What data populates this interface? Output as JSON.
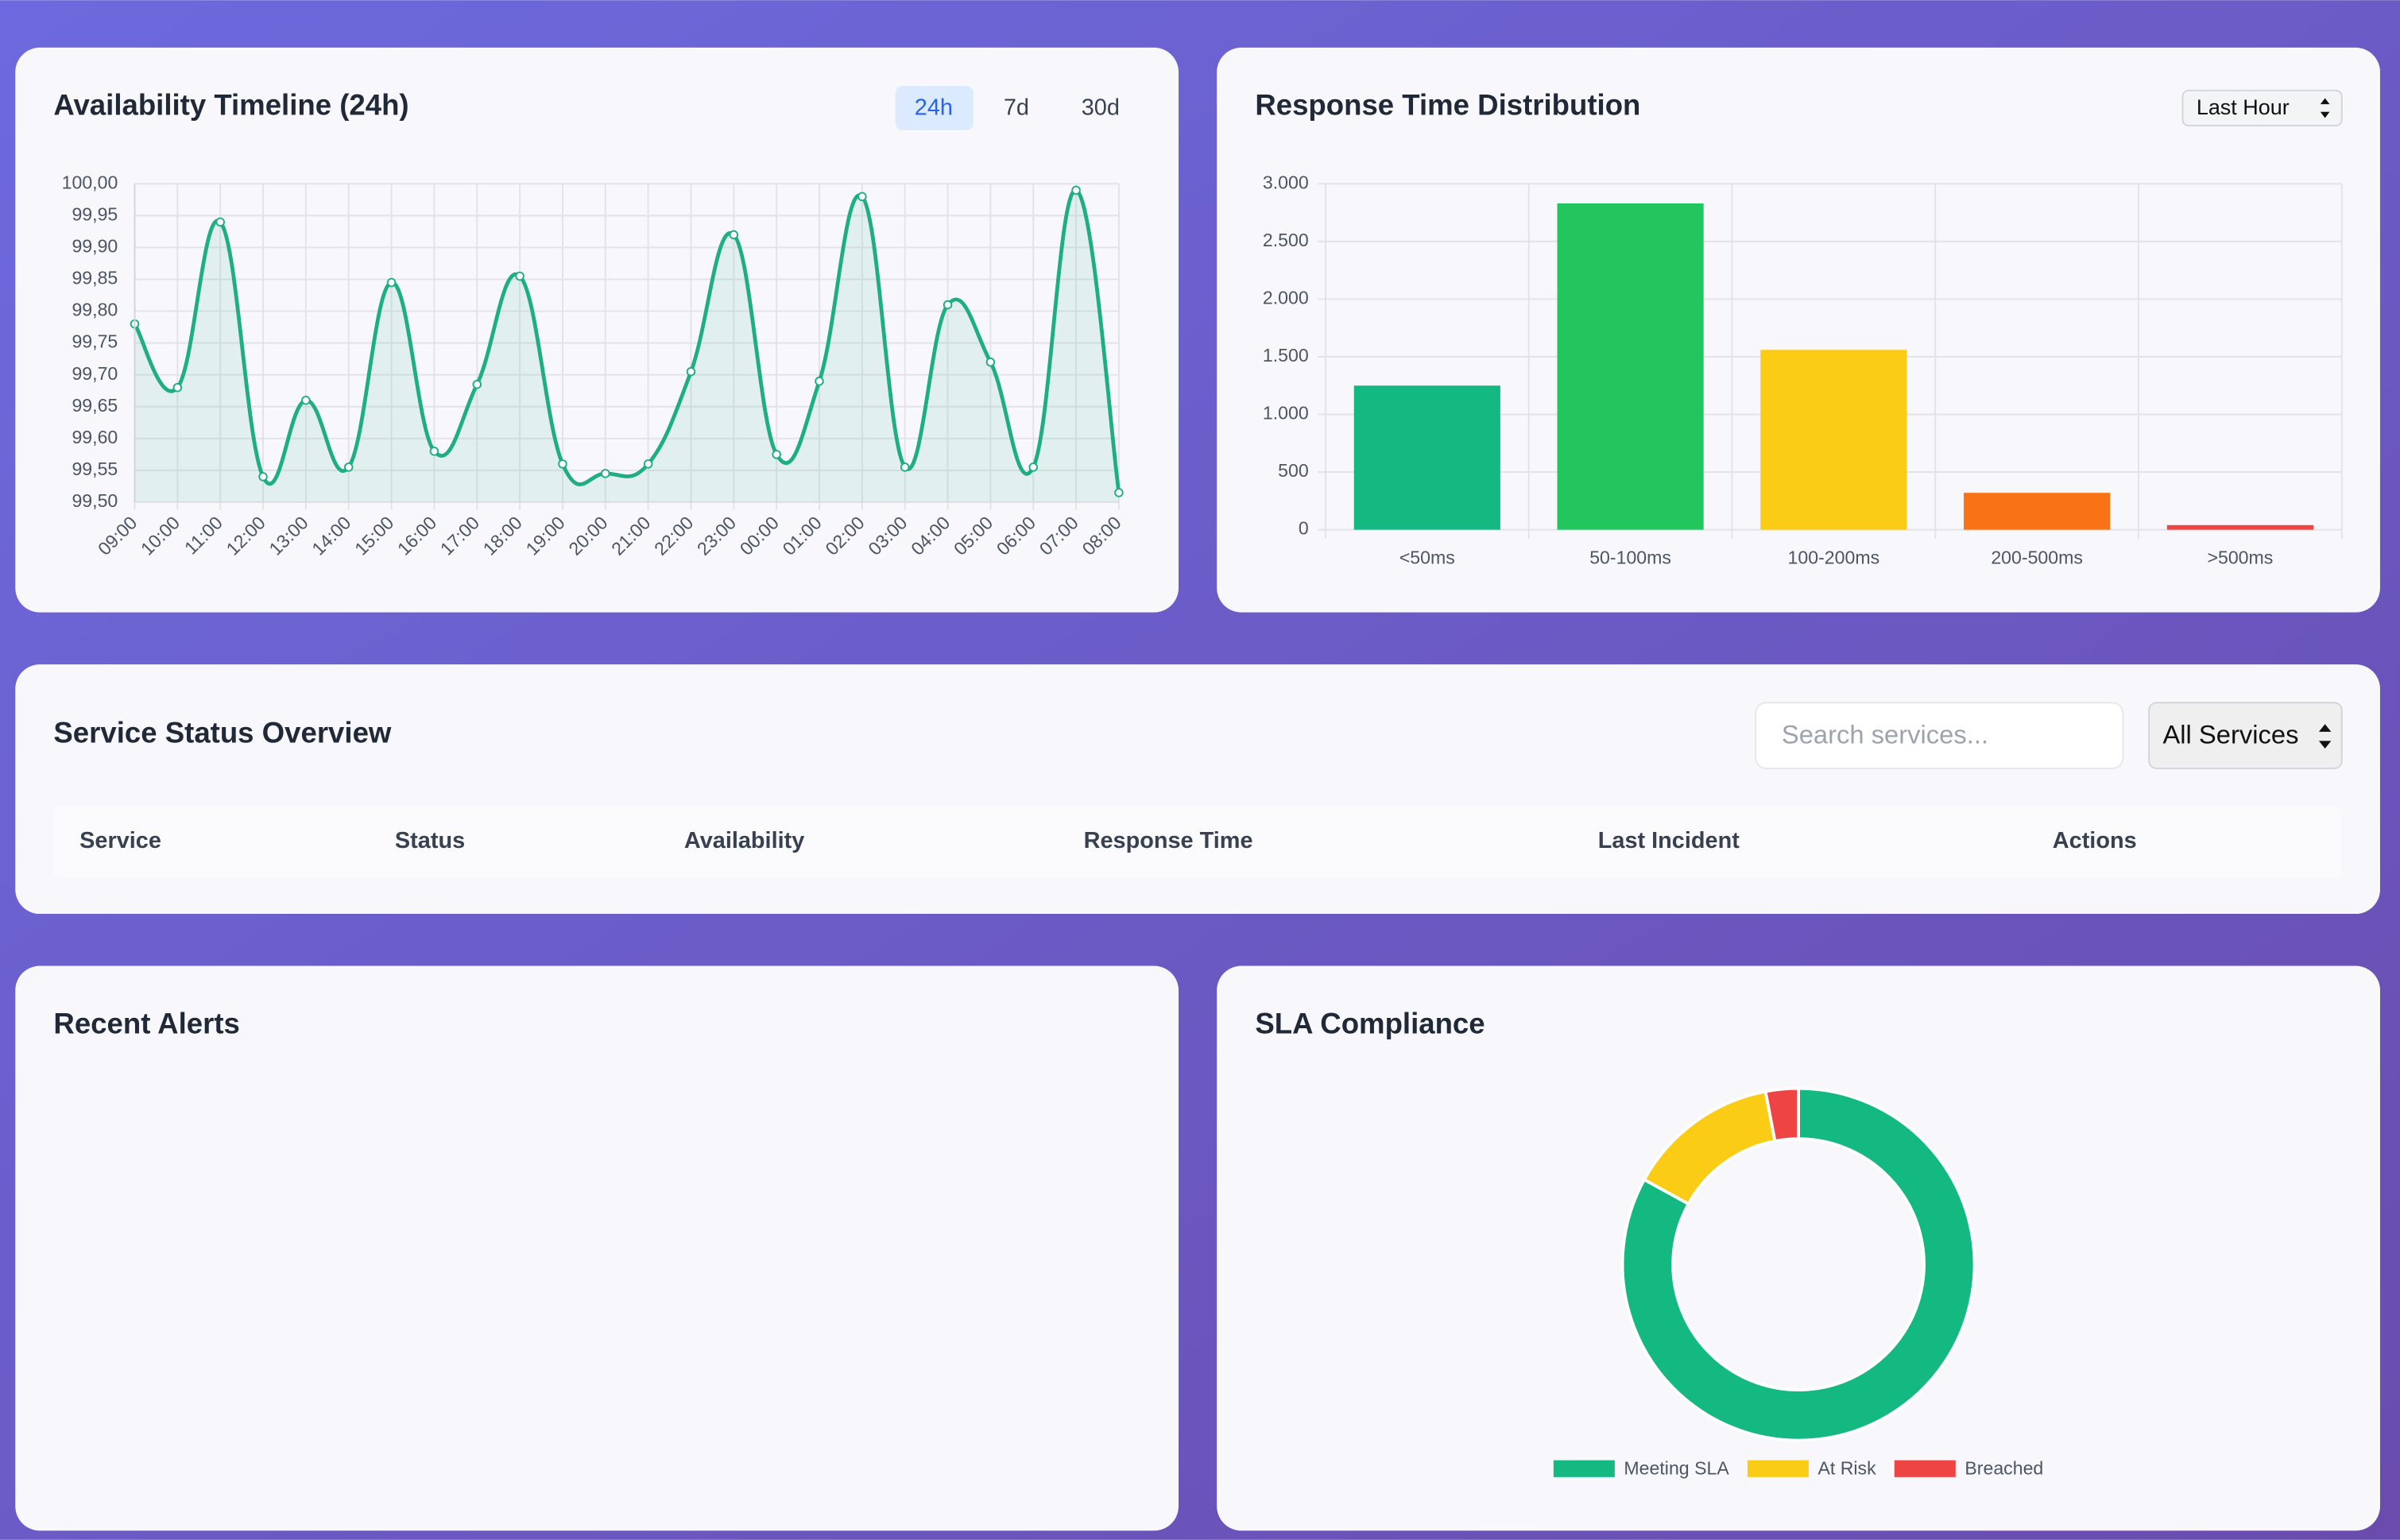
{
  "chart_data": [
    {
      "type": "line",
      "title": "Availability Timeline (24h)",
      "categories": [
        "09:00",
        "10:00",
        "11:00",
        "12:00",
        "13:00",
        "14:00",
        "15:00",
        "16:00",
        "17:00",
        "18:00",
        "19:00",
        "20:00",
        "21:00",
        "22:00",
        "23:00",
        "00:00",
        "01:00",
        "02:00",
        "03:00",
        "04:00",
        "05:00",
        "06:00",
        "07:00",
        "08:00"
      ],
      "series": [
        {
          "color": "#1fae82",
          "values": [
            99.78,
            99.68,
            99.94,
            99.54,
            99.66,
            99.555,
            99.845,
            99.58,
            99.685,
            99.855,
            99.56,
            99.545,
            99.56,
            99.705,
            99.92,
            99.575,
            99.69,
            99.98,
            99.555,
            99.81,
            99.72,
            99.555,
            99.99,
            99.515
          ]
        }
      ],
      "ylim": [
        99.5,
        100
      ],
      "yticks": [
        {
          "value": 99.5,
          "label": "99,50"
        },
        {
          "value": 99.55,
          "label": "99,55"
        },
        {
          "value": 99.6,
          "label": "99,60"
        },
        {
          "value": 99.65,
          "label": "99,65"
        },
        {
          "value": 99.7,
          "label": "99,70"
        },
        {
          "value": 99.75,
          "label": "99,75"
        },
        {
          "value": 99.8,
          "label": "99,80"
        },
        {
          "value": 99.85,
          "label": "99,85"
        },
        {
          "value": 99.9,
          "label": "99,90"
        },
        {
          "value": 99.95,
          "label": "99,95"
        },
        {
          "value": 100,
          "label": "100,00"
        }
      ],
      "grid": true
    },
    {
      "type": "bar",
      "title": "Response Time Distribution",
      "categories": [
        "<50ms",
        "50-100ms",
        "100-200ms",
        "200-500ms",
        ">500ms"
      ],
      "values": [
        1250,
        2830,
        1560,
        320,
        40
      ],
      "colors": [
        "#14b881",
        "#22c55e",
        "#facc15",
        "#f97316",
        "#ef4444"
      ],
      "ylim": [
        0,
        3000
      ],
      "yticks": [
        0,
        500,
        {
          "value": 1000,
          "label": "1.000"
        },
        {
          "value": 1500,
          "label": "1.500"
        },
        {
          "value": 2000,
          "label": "2.000"
        },
        {
          "value": 2500,
          "label": "2.500"
        },
        {
          "value": 3000,
          "label": "3.000"
        }
      ],
      "grid": true
    },
    {
      "type": "doughnut",
      "title": "SLA Compliance",
      "categories": [
        "Meeting SLA",
        "At Risk",
        "Breached"
      ],
      "values": [
        83,
        14,
        3
      ],
      "colors": [
        "#14b881",
        "#facc15",
        "#ef4444"
      ],
      "legend": "bottom"
    }
  ],
  "range_buttons": [
    "24h",
    "7d",
    "30d"
  ],
  "response_select": "Last Hour",
  "service_status": {
    "title": "Service Status Overview",
    "search_placeholder": "Search services...",
    "filter": "All Services",
    "columns": [
      "Service",
      "Status",
      "Availability",
      "Response Time",
      "Last Incident",
      "Actions"
    ]
  },
  "recent_alerts": {
    "title": "Recent Alerts"
  }
}
